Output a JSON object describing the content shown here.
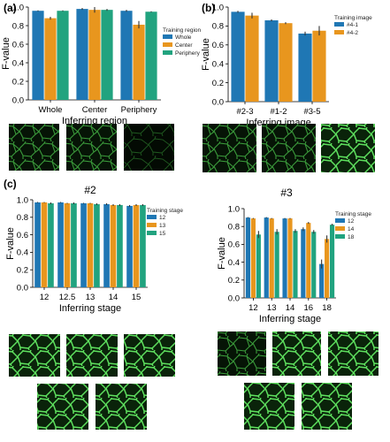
{
  "panel_labels": [
    "(a)",
    "(b)",
    "(c)"
  ],
  "colors": {
    "series1": "#1f77b4",
    "series2": "#e8961e",
    "series3": "#21a37f"
  },
  "images": {
    "row1": [
      "dim-cells",
      "dim-cells",
      "dark-cells",
      "dim-cells",
      "dim-cells",
      "bright-cells"
    ],
    "row2_left": [
      "bright-cells",
      "bright-cells",
      "bright-cells",
      "bright-cells",
      "bright-cells"
    ],
    "row2_right": [
      "dim-cells",
      "bright-cells",
      "bright-cells",
      "bright-cells",
      "bright-cells"
    ]
  },
  "chart_data": [
    {
      "id": "a",
      "type": "bar",
      "title": "",
      "xlabel": "Inferring region",
      "ylabel": "F-value",
      "ylim": [
        0,
        1.0
      ],
      "yticks": [
        "0.0",
        "0.2",
        "0.4",
        "0.6",
        "0.8",
        "1.0"
      ],
      "categories": [
        "Whole",
        "Center",
        "Periphery"
      ],
      "legend_title": "Training region",
      "legend_position": "right",
      "series": [
        {
          "name": "Whole",
          "values": [
            0.96,
            0.98,
            0.96
          ],
          "err": [
            0.005,
            0.01,
            0.01
          ]
        },
        {
          "name": "Center",
          "values": [
            0.88,
            0.97,
            0.81
          ],
          "err": [
            0.015,
            0.03,
            0.04
          ]
        },
        {
          "name": "Periphery",
          "values": [
            0.96,
            0.97,
            0.95
          ],
          "err": [
            0.005,
            0.01,
            0.005
          ]
        }
      ]
    },
    {
      "id": "b",
      "type": "bar",
      "title": "",
      "xlabel": "Inferring image",
      "ylabel": "F-value",
      "ylim": [
        0,
        1.0
      ],
      "yticks": [
        "0.0",
        "0.2",
        "0.4",
        "0.6",
        "0.8",
        "1.0"
      ],
      "categories": [
        "#2-3",
        "#1-2",
        "#3-5"
      ],
      "legend_title": "Training image",
      "legend_position": "top-right",
      "series": [
        {
          "name": "#4-1",
          "values": [
            0.95,
            0.86,
            0.72
          ],
          "err": [
            0.01,
            0.01,
            0.02
          ]
        },
        {
          "name": "#4-2",
          "values": [
            0.91,
            0.83,
            0.75
          ],
          "err": [
            0.03,
            0.01,
            0.05
          ]
        }
      ]
    },
    {
      "id": "c1",
      "type": "bar",
      "title": "#2",
      "xlabel": "Inferring stage",
      "ylabel": "F-value",
      "ylim": [
        0,
        1.0
      ],
      "yticks": [
        "0.0",
        "0.2",
        "0.4",
        "0.6",
        "0.8",
        "1.0"
      ],
      "categories": [
        "12",
        "12.5",
        "13",
        "14",
        "15"
      ],
      "legend_title": "Training stage",
      "legend_position": "right",
      "series": [
        {
          "name": "12",
          "values": [
            0.97,
            0.97,
            0.96,
            0.95,
            0.93
          ],
          "err": [
            0.005,
            0.005,
            0.005,
            0.01,
            0.01
          ]
        },
        {
          "name": "13",
          "values": [
            0.97,
            0.96,
            0.96,
            0.94,
            0.94
          ],
          "err": [
            0.005,
            0.005,
            0.005,
            0.01,
            0.01
          ]
        },
        {
          "name": "15",
          "values": [
            0.96,
            0.96,
            0.95,
            0.94,
            0.94
          ],
          "err": [
            0.01,
            0.01,
            0.01,
            0.01,
            0.01
          ]
        }
      ]
    },
    {
      "id": "c2",
      "type": "bar",
      "title": "#3",
      "xlabel": "Inferring stage",
      "ylabel": "F-value",
      "ylim": [
        0,
        1.0
      ],
      "yticks": [
        "0.0",
        "0.2",
        "0.4",
        "0.6",
        "0.8",
        "1.0"
      ],
      "categories": [
        "12",
        "13",
        "14",
        "16",
        "18"
      ],
      "legend_title": "Training stage",
      "legend_position": "right",
      "series": [
        {
          "name": "12",
          "values": [
            0.9,
            0.9,
            0.89,
            0.77,
            0.38
          ],
          "err": [
            0.005,
            0.005,
            0.005,
            0.02,
            0.05
          ]
        },
        {
          "name": "14",
          "values": [
            0.89,
            0.89,
            0.89,
            0.84,
            0.66
          ],
          "err": [
            0.005,
            0.005,
            0.005,
            0.01,
            0.04
          ]
        },
        {
          "name": "18",
          "values": [
            0.71,
            0.74,
            0.75,
            0.74,
            0.82
          ],
          "err": [
            0.04,
            0.03,
            0.02,
            0.02,
            0.01
          ]
        }
      ]
    }
  ]
}
